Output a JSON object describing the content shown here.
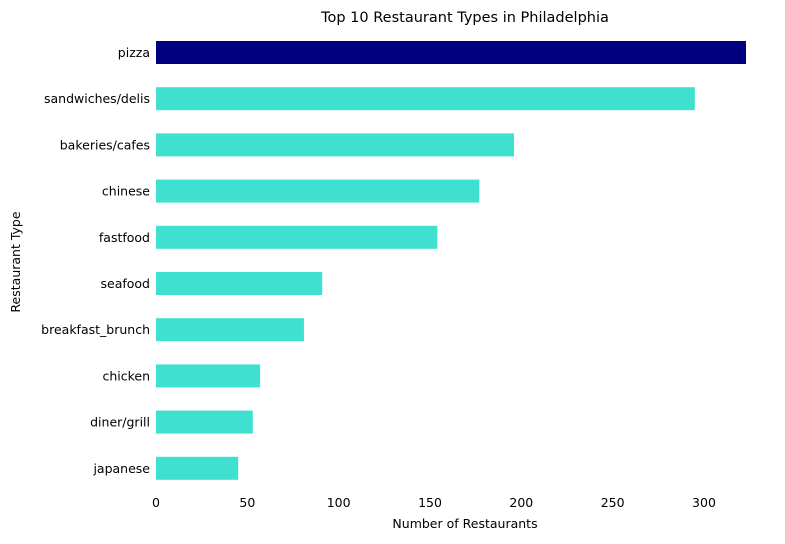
{
  "chart_data": {
    "type": "bar",
    "orientation": "horizontal",
    "title": "Top 10 Restaurant Types in Philadelphia",
    "xlabel": "Number of Restaurants",
    "ylabel": "Restaurant Type",
    "categories": [
      "pizza",
      "sandwiches/delis",
      "bakeries/cafes",
      "chinese",
      "fastfood",
      "seafood",
      "breakfast_brunch",
      "chicken",
      "diner/grill",
      "japanese"
    ],
    "values": [
      323,
      295,
      196,
      177,
      154,
      91,
      81,
      57,
      53,
      45
    ],
    "xlim": [
      0,
      323
    ],
    "xticks": [
      "0",
      "50",
      "100",
      "150",
      "200",
      "250",
      "300"
    ],
    "grid": false,
    "colors": {
      "highlight": "#000080",
      "default": "#40E0D0"
    },
    "highlight_index": 0
  }
}
